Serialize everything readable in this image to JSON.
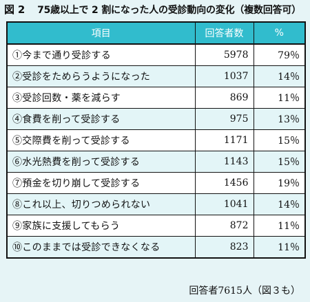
{
  "figure": {
    "number": "図 2",
    "title": "75歳以上で 2 割になった人の受診動向の変化（複数回答可）"
  },
  "table": {
    "headers": [
      "項目",
      "回答者数",
      "%"
    ],
    "rows": [
      {
        "item": "①今まで通り受診する",
        "count": "5978",
        "pct": "79％"
      },
      {
        "item": "②受診をためらうようになった",
        "count": "1037",
        "pct": "14％"
      },
      {
        "item": "③受診回数・薬を減らす",
        "count": "869",
        "pct": "11％"
      },
      {
        "item": "④食費を削って受診する",
        "count": "975",
        "pct": "13％"
      },
      {
        "item": "⑤交際費を削って受診する",
        "count": "1171",
        "pct": "15％"
      },
      {
        "item": "⑥水光熱費を削って受診する",
        "count": "1143",
        "pct": "15％"
      },
      {
        "item": "⑦預金を切り崩して受診する",
        "count": "1456",
        "pct": "19％"
      },
      {
        "item": "⑧これ以上、切りつめられない",
        "count": "1041",
        "pct": "14％"
      },
      {
        "item": "⑨家族に支援してもらう",
        "count": "872",
        "pct": "11％"
      },
      {
        "item": "⑩このままでは受診できなくなる",
        "count": "823",
        "pct": "11％"
      }
    ]
  },
  "footer": "回答者7615人（図３も）",
  "colors": {
    "header_bg": "#31bccd",
    "stripe_bg": "#e3f5f7",
    "page_bg": "#e6f4f6"
  }
}
